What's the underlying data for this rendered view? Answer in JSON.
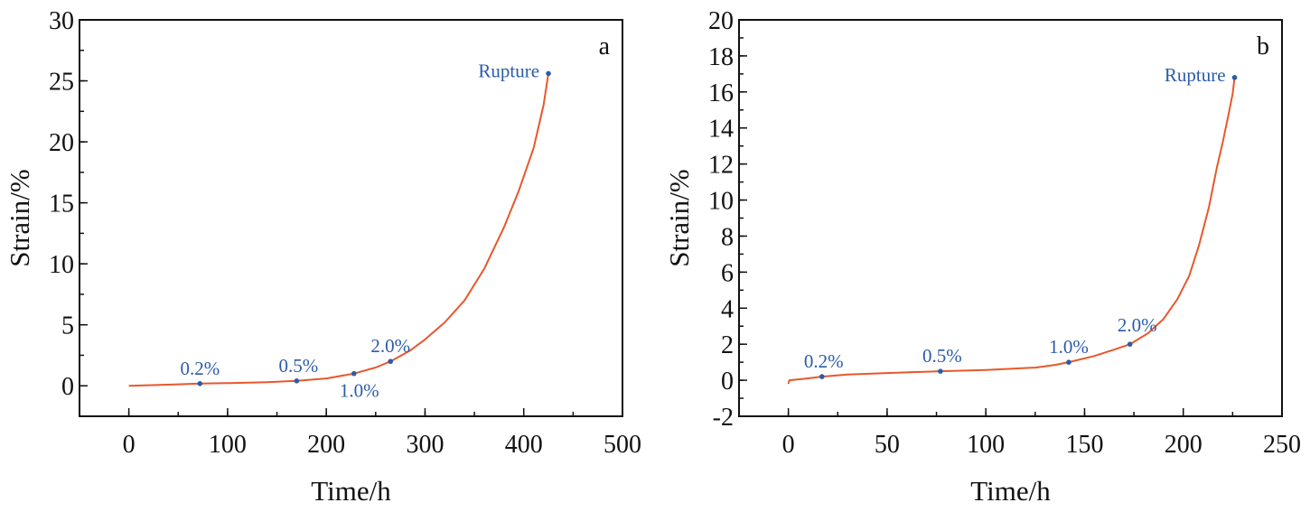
{
  "colors": {
    "curve": "#e8572b",
    "marker": "#2b5ca8",
    "axis": "#111111"
  },
  "chart_data": [
    {
      "type": "line",
      "panel_label": "a",
      "xlabel": "Time/h",
      "ylabel": "Strain/%",
      "xlim": [
        -50,
        500
      ],
      "ylim": [
        -2.5,
        30
      ],
      "xticks": [
        0,
        100,
        200,
        300,
        400,
        500
      ],
      "xtick_labels": [
        "0",
        "100",
        "200",
        "300",
        "400",
        "500"
      ],
      "xminor_step": 50,
      "yticks": [
        0,
        5,
        10,
        15,
        20,
        25,
        30
      ],
      "ytick_labels": [
        "0",
        "5",
        "10",
        "15",
        "20",
        "25",
        "30"
      ],
      "yminor_step": 2.5,
      "grid": false,
      "series": [
        {
          "name": "creep curve",
          "x": [
            0,
            20,
            50,
            72,
            100,
            140,
            170,
            200,
            228,
            250,
            265,
            285,
            300,
            320,
            340,
            360,
            380,
            395,
            410,
            420,
            425
          ],
          "y": [
            0,
            0.05,
            0.12,
            0.18,
            0.22,
            0.3,
            0.4,
            0.6,
            1.0,
            1.5,
            2.0,
            2.9,
            3.8,
            5.2,
            7.0,
            9.6,
            13.0,
            16.0,
            19.5,
            23.0,
            25.6
          ]
        }
      ],
      "annotations": [
        {
          "label": "0.2%",
          "x": 72,
          "y": 0.18
        },
        {
          "label": "0.5%",
          "x": 170,
          "y": 0.4
        },
        {
          "label": "1.0%",
          "x": 228,
          "y": 1.0
        },
        {
          "label": "2.0%",
          "x": 265,
          "y": 2.0
        },
        {
          "label": "Rupture",
          "x": 425,
          "y": 25.6
        }
      ]
    },
    {
      "type": "line",
      "panel_label": "b",
      "xlabel": "Time/h",
      "ylabel": "Strain/%",
      "xlim": [
        -25,
        250
      ],
      "ylim": [
        -2,
        20
      ],
      "xticks": [
        0,
        50,
        100,
        150,
        200,
        250
      ],
      "xtick_labels": [
        "0",
        "50",
        "100",
        "150",
        "200",
        "250"
      ],
      "xminor_step": 25,
      "yticks": [
        -2,
        0,
        2,
        4,
        6,
        8,
        10,
        12,
        14,
        16,
        18,
        20
      ],
      "ytick_labels": [
        "-2",
        "0",
        "2",
        "4",
        "6",
        "8",
        "10",
        "12",
        "14",
        "16",
        "18",
        "20"
      ],
      "yminor_step": 1,
      "grid": false,
      "series": [
        {
          "name": "creep curve",
          "x": [
            0,
            0.5,
            8,
            17,
            30,
            50,
            77,
            100,
            125,
            135,
            142,
            155,
            165,
            173,
            182,
            190,
            197,
            203,
            208,
            213,
            217,
            220,
            223,
            225,
            226
          ],
          "y": [
            -0.2,
            0,
            0.08,
            0.2,
            0.32,
            0.4,
            0.5,
            0.57,
            0.7,
            0.85,
            1.0,
            1.35,
            1.7,
            2.0,
            2.6,
            3.4,
            4.5,
            5.8,
            7.5,
            9.6,
            11.8,
            13.2,
            14.8,
            15.9,
            16.8
          ]
        }
      ],
      "annotations": [
        {
          "label": "0.2%",
          "x": 17,
          "y": 0.2
        },
        {
          "label": "0.5%",
          "x": 77,
          "y": 0.5
        },
        {
          "label": "1.0%",
          "x": 142,
          "y": 1.0
        },
        {
          "label": "2.0%",
          "x": 173,
          "y": 2.0
        },
        {
          "label": "Rupture",
          "x": 226,
          "y": 16.8
        }
      ]
    }
  ]
}
